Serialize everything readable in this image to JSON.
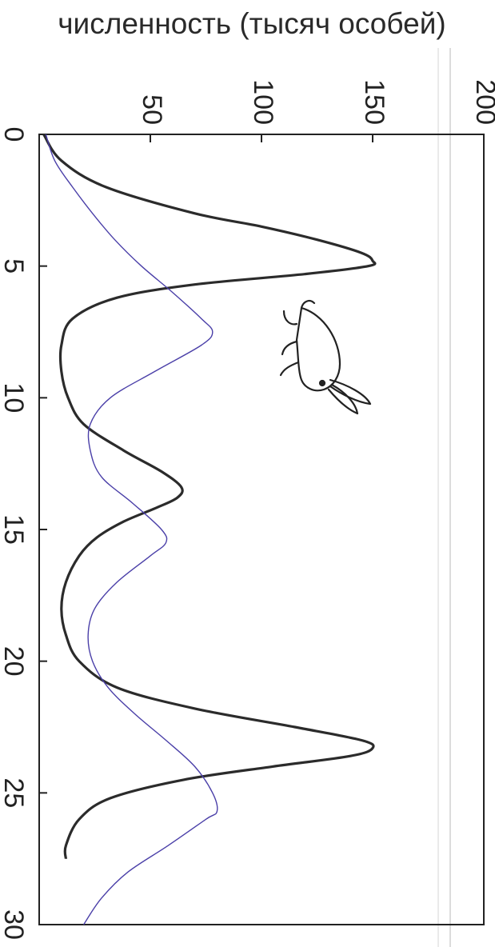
{
  "chart_data": {
    "type": "line",
    "title": "",
    "ylabel": "численность (тысяч особей)",
    "xlabel": "",
    "xlim": [
      0,
      30
    ],
    "ylim": [
      0,
      200
    ],
    "x_ticks": [
      "0",
      "5",
      "10",
      "15",
      "20",
      "25",
      "30"
    ],
    "y_ticks": [
      "50",
      "100",
      "150",
      "200"
    ],
    "grid": false,
    "legend": "none",
    "series": [
      {
        "color": "#2b2b2b",
        "x": [
          0,
          1,
          2,
          3,
          3.5,
          4,
          4.5,
          4.8,
          5.0,
          5.3,
          5.7,
          6.2,
          7,
          8,
          9,
          10,
          11,
          12,
          12.8,
          13.4,
          13.8,
          14.2,
          14.7,
          15.3,
          16,
          17,
          18,
          19,
          20,
          21,
          21.8,
          22.5,
          23.0,
          23.3,
          23.6,
          24.0,
          24.5,
          25.2,
          26,
          27,
          27.5
        ],
        "y": [
          2,
          10,
          30,
          70,
          100,
          125,
          145,
          150,
          148,
          120,
          70,
          35,
          15,
          10,
          10,
          13,
          20,
          38,
          55,
          64,
          62,
          52,
          38,
          26,
          18,
          12,
          10,
          12,
          18,
          35,
          70,
          115,
          145,
          150,
          140,
          105,
          65,
          32,
          18,
          12,
          12
        ]
      },
      {
        "color": "#4a3fa8",
        "x": [
          0,
          1,
          2,
          3,
          4,
          5,
          6,
          7,
          7.5,
          8,
          9,
          10,
          11,
          12,
          13,
          14,
          15,
          15.5,
          16,
          17,
          18,
          19,
          20,
          21,
          22,
          23,
          24,
          25,
          25.7,
          26,
          27,
          28,
          29,
          30
        ],
        "y": [
          3,
          7,
          15,
          24,
          34,
          46,
          60,
          73,
          78,
          73,
          52,
          32,
          23,
          23,
          28,
          42,
          55,
          57,
          50,
          35,
          25,
          22,
          24,
          31,
          43,
          57,
          70,
          78,
          80,
          75,
          58,
          40,
          28,
          20
        ]
      }
    ]
  }
}
